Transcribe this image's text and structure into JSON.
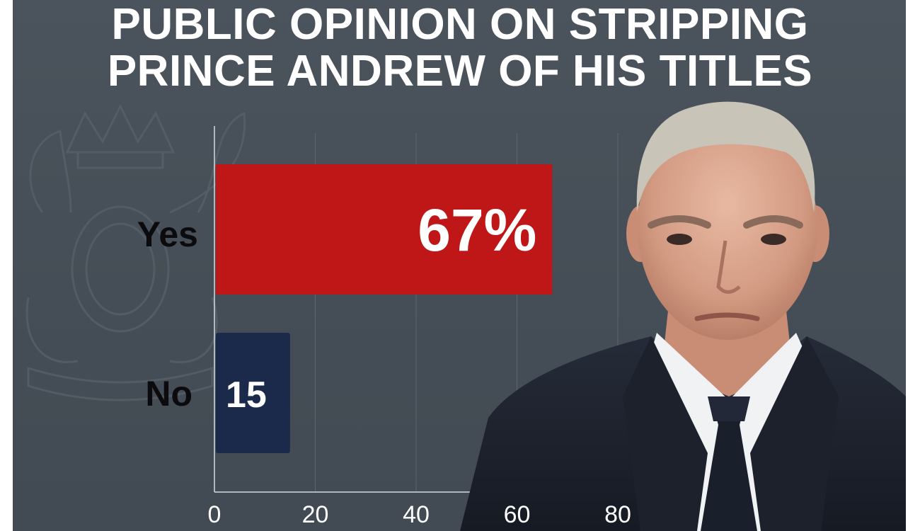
{
  "title_lines": [
    "PUBLIC OPINION ON STRIPPING",
    "PRINCE ANDREW OF HIS TITLES"
  ],
  "colors": {
    "background": "#474f58",
    "yes_bar": "#bf1717",
    "no_bar": "#1b2a4a",
    "text": "#ffffff",
    "category_text": "#0b0b0d"
  },
  "chart_data": {
    "type": "bar",
    "orientation": "horizontal",
    "categories": [
      "Yes",
      "No"
    ],
    "values": [
      67,
      15
    ],
    "data_labels": [
      "67%",
      "15"
    ],
    "title": "PUBLIC OPINION ON STRIPPING PRINCE ANDREW OF HIS TITLES",
    "xlabel": "",
    "ylabel": "",
    "xlim": [
      0,
      80
    ],
    "x_ticks": [
      0,
      20,
      40,
      60,
      80
    ],
    "x_tick_labels": [
      "0",
      "20",
      "40",
      "60",
      "80"
    ],
    "grid": true
  },
  "images": {
    "background_crest": "royal-coat-of-arms-watermark",
    "portrait": "man-in-dark-suit-and-tie"
  }
}
